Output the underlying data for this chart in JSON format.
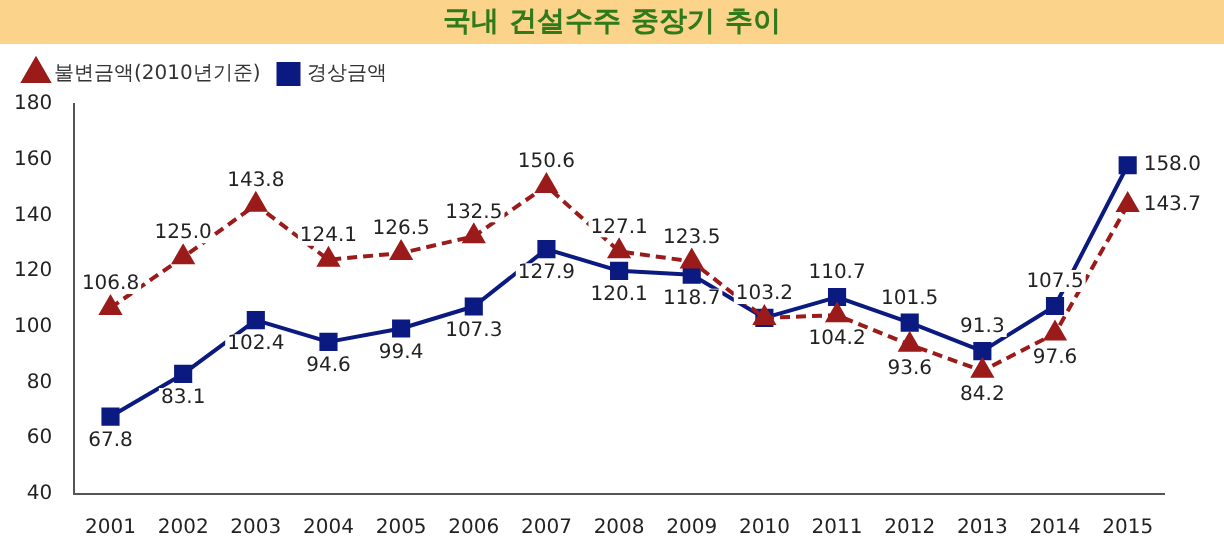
{
  "chart_data": {
    "type": "line",
    "title": "국내 건설수주 중장기 추이",
    "categories": [
      "2001",
      "2002",
      "2003",
      "2004",
      "2005",
      "2006",
      "2007",
      "2008",
      "2009",
      "2010",
      "2011",
      "2012",
      "2013",
      "2014",
      "2015"
    ],
    "series": [
      {
        "name": "경상금액",
        "color": "#0b1a80",
        "marker": "square",
        "line_style": "solid",
        "values": [
          67.8,
          83.1,
          102.4,
          94.6,
          99.4,
          107.3,
          127.9,
          120.1,
          118.7,
          103.2,
          110.7,
          101.5,
          91.3,
          107.5,
          158.0
        ],
        "value_labels": [
          "67.8",
          "83.1",
          "102.4",
          "94.6",
          "99.4",
          "107.3",
          "127.9",
          "120.1",
          "118.7",
          "103.2",
          "110.7",
          "101.5",
          "91.3",
          "107.5",
          "158.0"
        ]
      },
      {
        "name": "불변금액(2010년기준)",
        "color": "#9b1a1a",
        "marker": "triangle",
        "line_style": "dashed",
        "values": [
          106.8,
          125.0,
          143.8,
          124.1,
          126.5,
          132.5,
          150.6,
          127.1,
          123.5,
          103.2,
          104.2,
          93.6,
          84.2,
          97.6,
          143.7
        ],
        "value_labels": [
          "106.8",
          "125.0",
          "143.8",
          "124.1",
          "126.5",
          "132.5",
          "150.6",
          "127.1",
          "123.5",
          null,
          "104.2",
          "93.6",
          "84.2",
          "97.6",
          "143.7"
        ]
      }
    ],
    "ylim": [
      40,
      180
    ],
    "yticks": [
      40,
      60,
      80,
      100,
      120,
      140,
      160,
      180
    ],
    "grid": false,
    "legend": "top left"
  }
}
